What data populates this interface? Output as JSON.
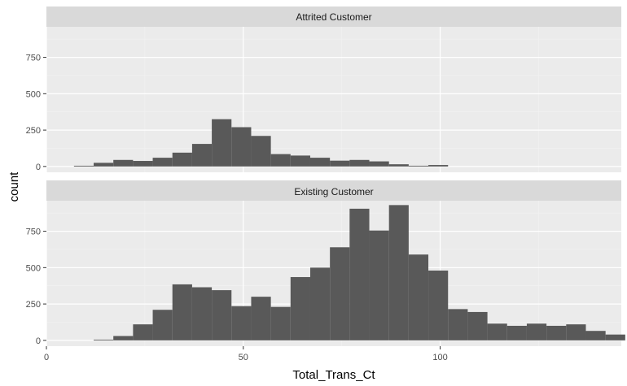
{
  "chart_data": {
    "type": "bar",
    "subtype": "faceted-histogram",
    "xlabel": "Total_Trans_Ct",
    "ylabel": "count",
    "xlim": [
      0,
      146
    ],
    "ylim": [
      -40,
      960
    ],
    "x_ticks": [
      0,
      50,
      100
    ],
    "y_ticks": [
      0,
      250,
      500,
      750
    ],
    "bin_width": 5,
    "grid": true,
    "legend": "none",
    "colors": {
      "panel_bg": "#ebebeb",
      "strip_bg": "#d9d9d9",
      "grid_major": "#ffffff",
      "grid_minor": "#f2f2f2",
      "bar": "#595959"
    },
    "facets": [
      {
        "label": "Attrited Customer",
        "bins": [
          {
            "x0": 7,
            "x1": 12,
            "count": 5
          },
          {
            "x0": 12,
            "x1": 17,
            "count": 25
          },
          {
            "x0": 17,
            "x1": 22,
            "count": 45
          },
          {
            "x0": 22,
            "x1": 27,
            "count": 38
          },
          {
            "x0": 27,
            "x1": 32,
            "count": 60
          },
          {
            "x0": 32,
            "x1": 37,
            "count": 95
          },
          {
            "x0": 37,
            "x1": 42,
            "count": 155
          },
          {
            "x0": 42,
            "x1": 47,
            "count": 325
          },
          {
            "x0": 47,
            "x1": 52,
            "count": 270
          },
          {
            "x0": 52,
            "x1": 57,
            "count": 210
          },
          {
            "x0": 57,
            "x1": 62,
            "count": 85
          },
          {
            "x0": 62,
            "x1": 67,
            "count": 75
          },
          {
            "x0": 67,
            "x1": 72,
            "count": 60
          },
          {
            "x0": 72,
            "x1": 77,
            "count": 40
          },
          {
            "x0": 77,
            "x1": 82,
            "count": 45
          },
          {
            "x0": 82,
            "x1": 87,
            "count": 35
          },
          {
            "x0": 87,
            "x1": 92,
            "count": 15
          },
          {
            "x0": 92,
            "x1": 97,
            "count": 5
          },
          {
            "x0": 97,
            "x1": 102,
            "count": 10
          }
        ]
      },
      {
        "label": "Existing Customer",
        "bins": [
          {
            "x0": 12,
            "x1": 17,
            "count": 5
          },
          {
            "x0": 17,
            "x1": 22,
            "count": 30
          },
          {
            "x0": 22,
            "x1": 27,
            "count": 110
          },
          {
            "x0": 27,
            "x1": 32,
            "count": 210
          },
          {
            "x0": 32,
            "x1": 37,
            "count": 385
          },
          {
            "x0": 37,
            "x1": 42,
            "count": 365
          },
          {
            "x0": 42,
            "x1": 47,
            "count": 345
          },
          {
            "x0": 47,
            "x1": 52,
            "count": 235
          },
          {
            "x0": 52,
            "x1": 57,
            "count": 300
          },
          {
            "x0": 57,
            "x1": 62,
            "count": 230
          },
          {
            "x0": 62,
            "x1": 67,
            "count": 435
          },
          {
            "x0": 67,
            "x1": 72,
            "count": 500
          },
          {
            "x0": 72,
            "x1": 77,
            "count": 640
          },
          {
            "x0": 77,
            "x1": 82,
            "count": 905
          },
          {
            "x0": 82,
            "x1": 87,
            "count": 755
          },
          {
            "x0": 87,
            "x1": 92,
            "count": 930
          },
          {
            "x0": 92,
            "x1": 97,
            "count": 590
          },
          {
            "x0": 97,
            "x1": 102,
            "count": 480
          },
          {
            "x0": 102,
            "x1": 107,
            "count": 215
          },
          {
            "x0": 107,
            "x1": 112,
            "count": 195
          },
          {
            "x0": 112,
            "x1": 117,
            "count": 115
          },
          {
            "x0": 117,
            "x1": 122,
            "count": 100
          },
          {
            "x0": 122,
            "x1": 127,
            "count": 115
          },
          {
            "x0": 127,
            "x1": 132,
            "count": 100
          },
          {
            "x0": 132,
            "x1": 137,
            "count": 110
          },
          {
            "x0": 137,
            "x1": 142,
            "count": 65
          },
          {
            "x0": 142,
            "x1": 147,
            "count": 40
          }
        ]
      }
    ]
  }
}
